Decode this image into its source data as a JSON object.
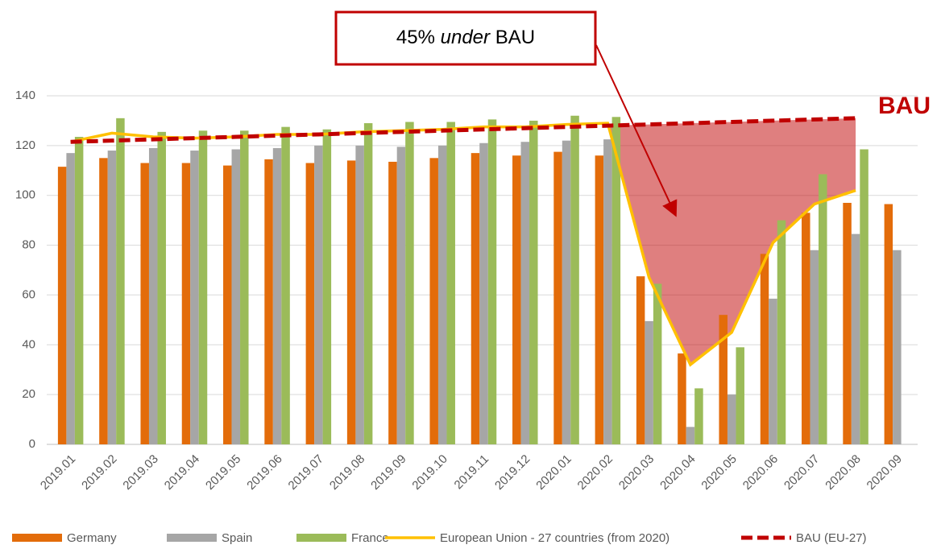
{
  "chart_data": {
    "type": "bar",
    "annotation": [
      "45%",
      "under",
      "BAU"
    ],
    "side_label": "BAU",
    "categories": [
      "2019.01",
      "2019.02",
      "2019.03",
      "2019.04",
      "2019.05",
      "2019.06",
      "2019.07",
      "2019.08",
      "2019.09",
      "2019.10",
      "2019.11",
      "2019.12",
      "2020.01",
      "2020.02",
      "2020.03",
      "2020.04",
      "2020.05",
      "2020.06",
      "2020.07",
      "2020.08",
      "2020.09"
    ],
    "series": [
      {
        "name": "Germany",
        "type": "bar",
        "color": "#e36c0a",
        "values": [
          111.5,
          115,
          113,
          113,
          112,
          114.5,
          113,
          114,
          113.5,
          115,
          117,
          116,
          117.5,
          116,
          67.5,
          36.5,
          52,
          76.5,
          93,
          97,
          96.5
        ]
      },
      {
        "name": "Spain",
        "type": "bar",
        "color": "#a6a6a6",
        "values": [
          117,
          118,
          119,
          118,
          118.5,
          119,
          120,
          120,
          119.5,
          120,
          121,
          121.5,
          122,
          122.5,
          49.5,
          7,
          20,
          58.5,
          78,
          84.5,
          78
        ]
      },
      {
        "name": "France",
        "type": "bar",
        "color": "#9bbb59",
        "values": [
          123.5,
          131,
          125.5,
          126,
          126,
          127.5,
          126.5,
          129,
          129.5,
          129.5,
          130.5,
          130,
          132,
          131.5,
          64.5,
          22.5,
          39,
          90,
          108.5,
          118.5,
          null
        ]
      },
      {
        "name": "European Union - 27 countries (from 2020)",
        "type": "line",
        "color": "#ffc000",
        "values": [
          121.5,
          125,
          123.5,
          123,
          123.5,
          124.5,
          124.5,
          125.5,
          126,
          126.5,
          127.5,
          127.5,
          128.5,
          129,
          67,
          32,
          45,
          81,
          96.5,
          102,
          null
        ]
      },
      {
        "name": "BAU (EU-27)",
        "type": "line",
        "dashed": true,
        "color": "#c00000",
        "values": [
          121.5,
          122,
          122.5,
          123,
          123.5,
          124,
          124.5,
          125,
          125.5,
          126,
          126.5,
          127,
          127.5,
          128,
          128.5,
          129,
          129.5,
          130,
          130.5,
          131,
          null
        ]
      }
    ],
    "ylim": [
      0,
      140
    ],
    "yticks": [
      0,
      20,
      40,
      60,
      80,
      100,
      120,
      140
    ],
    "grid": true,
    "legend": "bottom"
  }
}
